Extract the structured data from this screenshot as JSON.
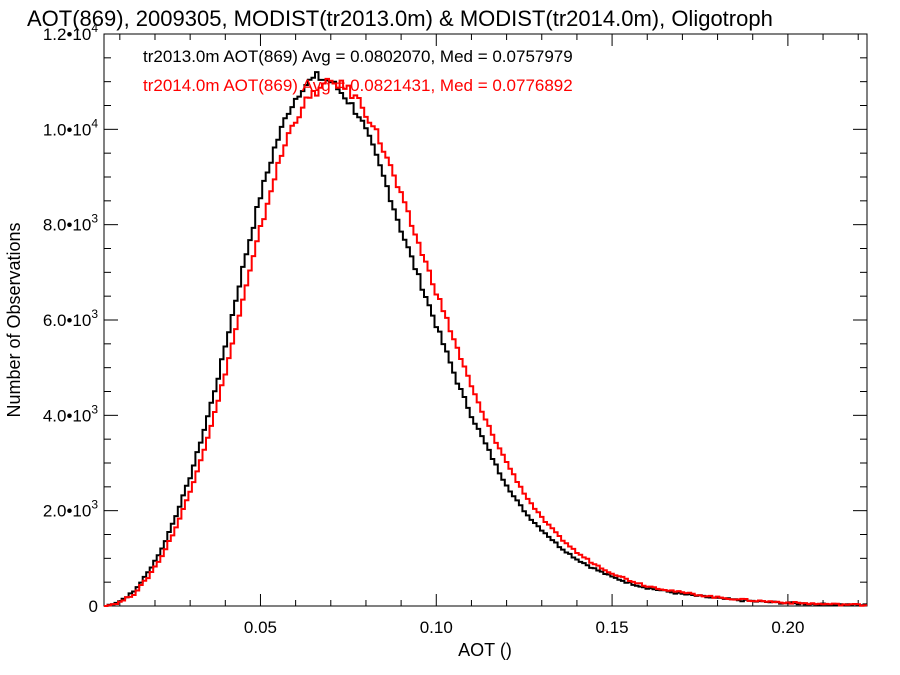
{
  "chart_data": {
    "type": "line",
    "title": "AOT(869), 2009305, MODIST(tr2013.0m) & MODIST(tr2014.0m), Oligotroph",
    "xlabel": "AOT ()",
    "ylabel": "Number of Observations",
    "xlim": [
      0.0055,
      0.2225
    ],
    "ylim": [
      0,
      12000
    ],
    "xticks": [
      0.05,
      0.1,
      0.15,
      0.2
    ],
    "xtick_labels": [
      "0.05",
      "0.10",
      "0.15",
      "0.20"
    ],
    "yticks": [
      0,
      2000,
      4000,
      6000,
      8000,
      10000,
      12000
    ],
    "ytick_labels": [
      {
        "mant": "0",
        "exp": ""
      },
      {
        "mant": "2.0•10",
        "exp": "3"
      },
      {
        "mant": "4.0•10",
        "exp": "3"
      },
      {
        "mant": "6.0•10",
        "exp": "3"
      },
      {
        "mant": "8.0•10",
        "exp": "3"
      },
      {
        "mant": "1.0•10",
        "exp": "4"
      },
      {
        "mant": "1.2•10",
        "exp": "4"
      }
    ],
    "grid": false,
    "legend_position": "top-left",
    "series": [
      {
        "name": "tr2013.0m AOT(869) Avg = 0.0802070, Med = 0.0757979",
        "color": "#000000",
        "x": [
          0.006,
          0.01,
          0.014,
          0.018,
          0.022,
          0.026,
          0.03,
          0.034,
          0.038,
          0.042,
          0.046,
          0.05,
          0.054,
          0.058,
          0.062,
          0.066,
          0.07,
          0.074,
          0.078,
          0.082,
          0.086,
          0.09,
          0.094,
          0.098,
          0.102,
          0.106,
          0.11,
          0.114,
          0.118,
          0.122,
          0.126,
          0.13,
          0.135,
          0.14,
          0.145,
          0.15,
          0.155,
          0.16,
          0.17,
          0.18,
          0.19,
          0.2,
          0.21,
          0.222
        ],
        "y": [
          0,
          100,
          300,
          700,
          1200,
          1900,
          2700,
          3700,
          4800,
          6100,
          7400,
          8600,
          9600,
          10400,
          10900,
          11100,
          11000,
          10700,
          10300,
          9600,
          8800,
          7900,
          7100,
          6300,
          5500,
          4700,
          4000,
          3400,
          2800,
          2300,
          1900,
          1600,
          1250,
          980,
          780,
          610,
          480,
          380,
          250,
          160,
          100,
          60,
          35,
          20
        ]
      },
      {
        "name": "tr2014.0m AOT(869) Avg = 0.0821431, Med = 0.0776892",
        "color": "#ff0000",
        "x": [
          0.006,
          0.01,
          0.014,
          0.018,
          0.022,
          0.026,
          0.03,
          0.034,
          0.038,
          0.042,
          0.046,
          0.05,
          0.054,
          0.058,
          0.062,
          0.066,
          0.07,
          0.074,
          0.078,
          0.082,
          0.086,
          0.09,
          0.094,
          0.098,
          0.102,
          0.106,
          0.11,
          0.114,
          0.118,
          0.122,
          0.126,
          0.13,
          0.135,
          0.14,
          0.145,
          0.15,
          0.155,
          0.16,
          0.17,
          0.18,
          0.19,
          0.2,
          0.21,
          0.222
        ],
        "y": [
          0,
          80,
          250,
          600,
          1050,
          1650,
          2400,
          3300,
          4300,
          5500,
          6700,
          7900,
          9000,
          9900,
          10500,
          10800,
          11000,
          10900,
          10600,
          10100,
          9400,
          8600,
          7800,
          7000,
          6200,
          5400,
          4600,
          3900,
          3300,
          2750,
          2250,
          1850,
          1450,
          1120,
          880,
          690,
          540,
          420,
          280,
          180,
          115,
          70,
          40,
          22
        ]
      }
    ]
  }
}
